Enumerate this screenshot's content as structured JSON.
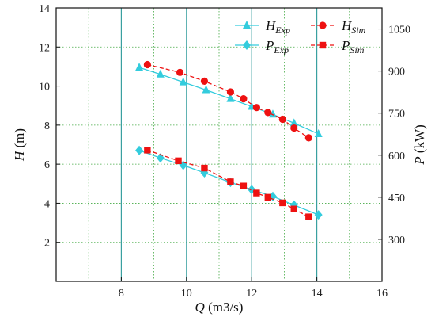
{
  "chart_data": {
    "type": "line",
    "x_axis": {
      "label_var": "Q",
      "label_unit": " (m3/s)",
      "range": [
        6,
        16
      ],
      "ticks": [
        8,
        10,
        12,
        14,
        16
      ]
    },
    "y_left": {
      "label_var": "H",
      "label_unit": " (m)",
      "range": [
        0,
        14
      ],
      "ticks": [
        2,
        4,
        6,
        8,
        10,
        12,
        14
      ]
    },
    "y_right": {
      "label_var": "P",
      "label_unit": " (kW)",
      "range": [
        150,
        1125
      ],
      "ticks": [
        300,
        450,
        600,
        750,
        900,
        1050
      ]
    },
    "grid": {
      "major_x": [
        8,
        10,
        12,
        14
      ],
      "minor_x": [
        7,
        9,
        11,
        13,
        15
      ],
      "minor_y": [
        2,
        4,
        6,
        8,
        10,
        12
      ]
    },
    "colors": {
      "exp": "#33ccdd",
      "sim": "#ee1111",
      "grid_major": "#3aa0a0",
      "grid_minor": "#44aa44"
    },
    "legend": {
      "placement": "top-right",
      "entries": [
        {
          "key": "h_exp",
          "base": "H",
          "sub": "Exp"
        },
        {
          "key": "h_sim",
          "base": "H",
          "sub": "Sim"
        },
        {
          "key": "p_exp",
          "base": "P",
          "sub": "Exp"
        },
        {
          "key": "p_sim",
          "base": "P",
          "sub": "Sim"
        }
      ]
    },
    "series": [
      {
        "key": "h_exp",
        "axis": "left",
        "marker": "triangle",
        "style": "solid",
        "color": "#33ccdd",
        "x": [
          8.55,
          9.2,
          9.9,
          10.6,
          11.35,
          12.0,
          12.65,
          13.3,
          14.05
        ],
        "y": [
          10.95,
          10.6,
          10.2,
          9.8,
          9.35,
          8.95,
          8.55,
          8.1,
          7.55
        ]
      },
      {
        "key": "h_sim",
        "axis": "left",
        "marker": "circle",
        "style": "dashed",
        "color": "#ee1111",
        "x": [
          8.8,
          9.8,
          10.55,
          11.35,
          11.75,
          12.15,
          12.5,
          12.95,
          13.3,
          13.75
        ],
        "y": [
          11.1,
          10.7,
          10.25,
          9.7,
          9.35,
          8.9,
          8.65,
          8.3,
          7.85,
          7.35
        ]
      },
      {
        "key": "p_exp",
        "axis": "right",
        "marker": "diamond",
        "style": "solid",
        "color": "#33ccdd",
        "x": [
          8.55,
          9.2,
          9.9,
          10.55,
          11.35,
          12.0,
          12.65,
          13.3,
          14.05
        ],
        "y": [
          617,
          590,
          564,
          537,
          503,
          477,
          453,
          422,
          387
        ]
      },
      {
        "key": "p_sim",
        "axis": "right",
        "marker": "square",
        "style": "dashed",
        "color": "#ee1111",
        "x": [
          8.8,
          9.75,
          10.55,
          11.35,
          11.75,
          12.15,
          12.5,
          12.95,
          13.3,
          13.75
        ],
        "y": [
          618,
          580,
          554,
          505,
          490,
          465,
          450,
          430,
          408,
          380
        ]
      }
    ]
  }
}
